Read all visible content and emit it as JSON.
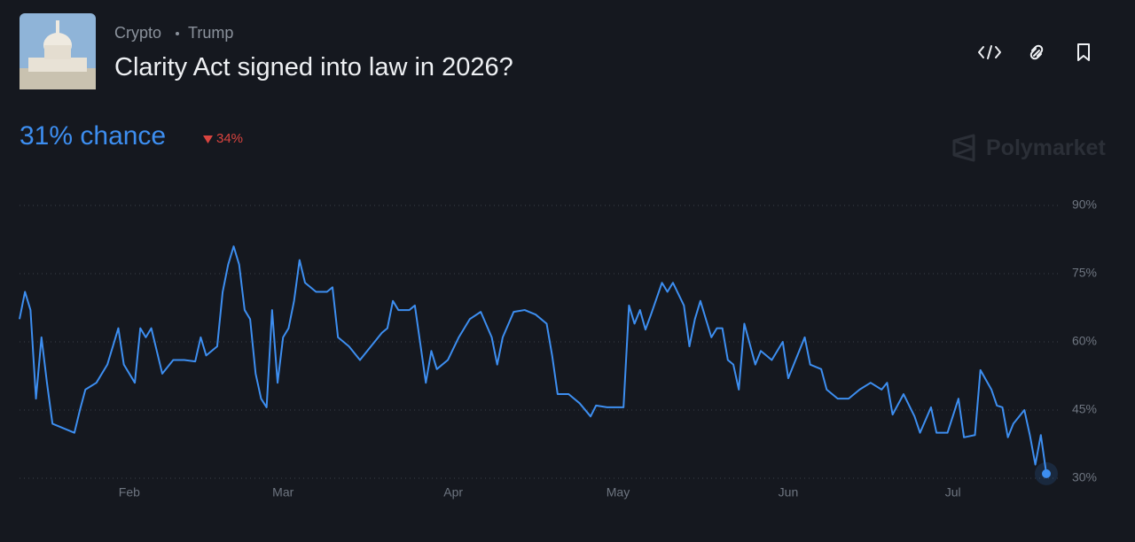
{
  "header": {
    "category": "Crypto",
    "tag": "Trump",
    "title": "Clarity Act signed into law in 2026?",
    "probability": "31% chance",
    "change": "34%",
    "watermark": "Polymarket"
  },
  "chart_data": {
    "type": "line",
    "color": "#3d8ef0",
    "grid": true,
    "x": [
      0,
      1,
      2,
      3,
      4,
      5,
      6,
      8,
      10,
      11,
      12,
      14,
      16,
      18,
      19,
      21,
      22,
      23,
      24,
      26,
      28,
      30,
      32,
      33,
      34,
      36,
      37,
      38,
      39,
      40,
      41,
      42,
      43,
      44,
      45,
      46,
      47,
      48,
      49,
      50,
      51,
      52,
      54,
      56,
      57,
      58,
      60,
      62,
      64,
      66,
      67,
      68,
      69,
      71,
      72,
      74,
      75,
      76,
      78,
      80,
      82,
      84,
      86,
      87,
      88,
      90,
      92,
      94,
      96,
      97,
      98,
      100,
      102,
      104,
      105,
      107,
      109,
      110,
      111,
      112,
      113,
      114,
      115,
      117,
      118,
      119,
      121,
      122,
      123,
      124,
      126,
      127,
      128,
      129,
      130,
      131,
      132,
      134,
      135,
      137,
      139,
      140,
      141,
      143,
      144,
      146,
      147,
      149,
      151,
      153,
      155,
      157,
      158,
      159,
      161,
      163,
      164,
      166,
      167,
      169,
      171,
      172,
      174,
      175,
      177,
      178,
      179,
      180,
      181,
      183,
      184,
      185,
      186,
      187
    ],
    "values": [
      65,
      71,
      67,
      47.5,
      61,
      51,
      42,
      41,
      40,
      45,
      49.5,
      51,
      55,
      63,
      55,
      51,
      63,
      61,
      63,
      53,
      56,
      56,
      55.7,
      61,
      57,
      59,
      71,
      77,
      81,
      77,
      67,
      65,
      53,
      47.5,
      45.6,
      67,
      51,
      61,
      63,
      69,
      78,
      73,
      71,
      71,
      72,
      61,
      59,
      56,
      59,
      62,
      63,
      69,
      67,
      67,
      68,
      51,
      58,
      54,
      56,
      61,
      65,
      66.6,
      61,
      55,
      61,
      66.6,
      67,
      66,
      64,
      57,
      48.5,
      48.5,
      46.5,
      43.6,
      46,
      45.6,
      45.6,
      45.6,
      68,
      64,
      67,
      62.7,
      66,
      73,
      71,
      73,
      68,
      59,
      65,
      69,
      61,
      63,
      63,
      56,
      55,
      49.5,
      64,
      55,
      58,
      56,
      60,
      52,
      55,
      61,
      55,
      54,
      49.5,
      47.5,
      47.5,
      49.5,
      51,
      49.5,
      51,
      44,
      48.5,
      43.6,
      40,
      45.6,
      40,
      40,
      47.5,
      39,
      39.5,
      53.8,
      49.5,
      46,
      45.6,
      39,
      42,
      45,
      39.5,
      33,
      39.5,
      31
    ],
    "xlim": [
      0,
      187
    ],
    "xticks": [
      {
        "value": 20,
        "label": "Feb"
      },
      {
        "value": 48,
        "label": "Mar"
      },
      {
        "value": 79,
        "label": "Apr"
      },
      {
        "value": 109,
        "label": "May"
      },
      {
        "value": 140,
        "label": "Jun"
      },
      {
        "value": 170,
        "label": "Jul"
      }
    ],
    "ylim": [
      30,
      90
    ],
    "yticks": [
      {
        "value": 30,
        "label": "30%"
      },
      {
        "value": 45,
        "label": "45%"
      },
      {
        "value": 60,
        "label": "60%"
      },
      {
        "value": 75,
        "label": "75%"
      },
      {
        "value": 90,
        "label": "90%"
      }
    ]
  }
}
